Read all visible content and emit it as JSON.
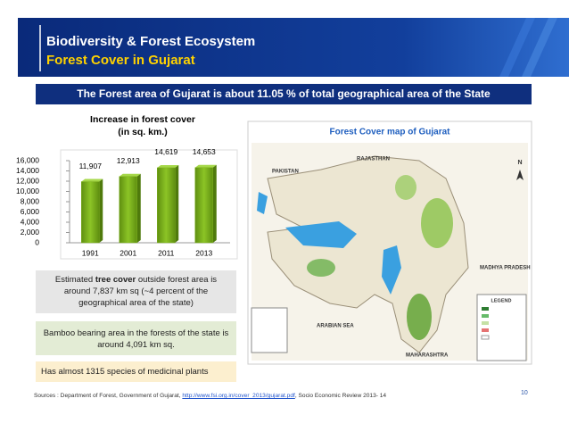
{
  "header": {
    "title": "Biodiversity & Forest Ecosystem",
    "subtitle": "Forest Cover in Gujarat"
  },
  "banner": "The Forest area of Gujarat is about 11.05 % of total geographical area of the State",
  "chart_data": {
    "type": "bar",
    "title": [
      "Increase in forest cover",
      "(in sq. km.)"
    ],
    "categories": [
      "1991",
      "2001",
      "2011",
      "2013"
    ],
    "values": [
      11907,
      12913,
      14619,
      14653
    ],
    "value_labels": [
      "11,907",
      "12,913",
      "14,619",
      "14,653"
    ],
    "color": "#7fb020",
    "ylim": [
      0,
      16000
    ],
    "yticks": [
      0,
      {
        "value": 2000,
        "label": "2,000"
      },
      {
        "value": 4000,
        "label": "4,000"
      },
      {
        "value": 6000,
        "label": "6,000"
      },
      {
        "value": 8000,
        "label": "8,000"
      },
      {
        "value": 10000,
        "label": "10,000"
      },
      {
        "value": 12000,
        "label": "12,000"
      },
      {
        "value": 14000,
        "label": "14,000"
      },
      {
        "value": 16000,
        "label": "16,000"
      }
    ]
  },
  "map": {
    "title": "Forest Cover map of Gujarat",
    "labels": [
      "PAKISTAN",
      "RAJASTHAN",
      "MADHYA PRADESH",
      "ARABIAN SEA",
      "MAHARASHTRA",
      "LEGEND",
      "N"
    ]
  },
  "notes": [
    [
      "Estimated ",
      "tree cover",
      " outside forest area is around 7,837 km sq (~4 percent of the geographical area of the state)"
    ],
    [
      "Bamboo bearing area in the forests of the state is around 4,091 km sq."
    ],
    [
      "Has almost 1315 species of medicinal plants"
    ]
  ],
  "footer": {
    "sources": [
      "Sources : Department of Forest, Government of Gujarat, ",
      "http://www.fsi.org.in/cover_2013/gujarat.pdf",
      ", Socio Economic Review 2013- 14"
    ],
    "page": "10"
  }
}
